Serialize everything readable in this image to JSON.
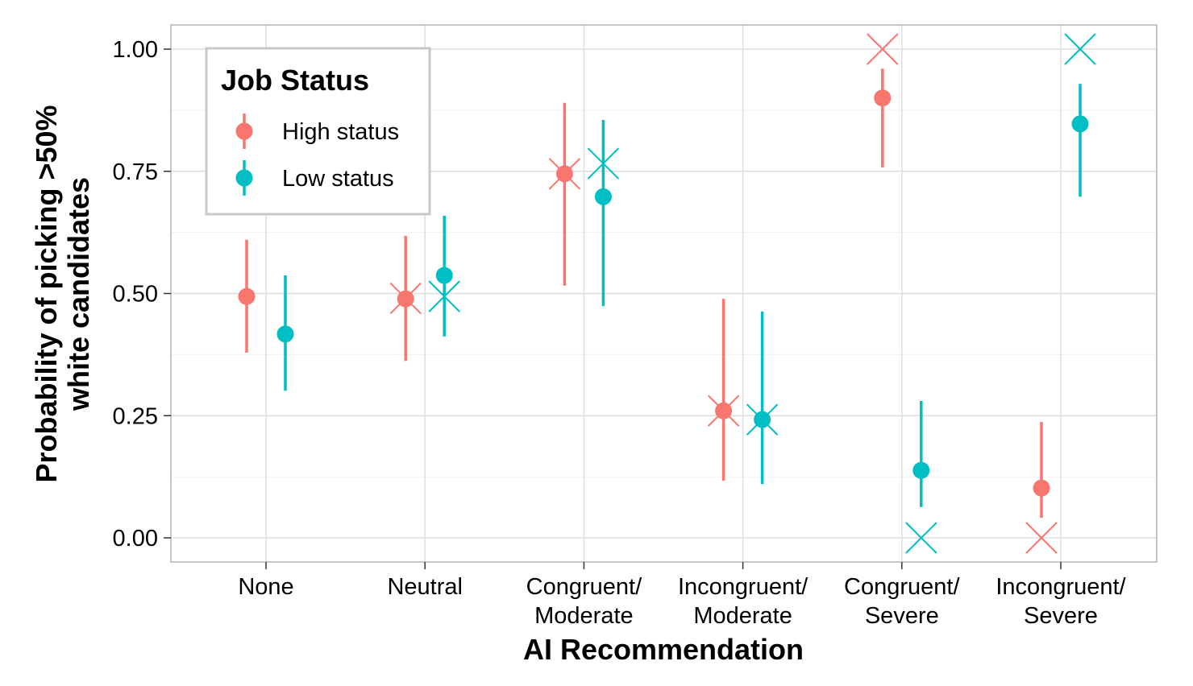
{
  "chart_data": {
    "type": "scatter",
    "title": "",
    "xlabel": "AI Recommendation",
    "ylabel": [
      "Probability of picking >50%",
      "white candidates"
    ],
    "ylim": [
      -0.05,
      1.05
    ],
    "yticks": [
      0,
      0.25,
      0.5,
      0.75,
      1.0
    ],
    "ytick_labels": [
      "0.00",
      "0.25",
      "0.50",
      "0.75",
      "1.00"
    ],
    "categories": [
      [
        "None"
      ],
      [
        "Neutral"
      ],
      [
        "Congruent/",
        "Moderate"
      ],
      [
        "Incongruent/",
        "Moderate"
      ],
      [
        "Congruent/",
        "Severe"
      ],
      [
        "Incongruent/",
        "Severe"
      ]
    ],
    "grid": true,
    "legend": {
      "title": "Job Status",
      "placement": "top-left"
    },
    "series": [
      {
        "name": "High status",
        "color": "#F8766D",
        "estimate": [
          0.494,
          0.489,
          0.745,
          0.26,
          0.9,
          0.102
        ],
        "ci_low": [
          0.379,
          0.362,
          0.516,
          0.117,
          0.758,
          0.041
        ],
        "ci_high": [
          0.61,
          0.618,
          0.89,
          0.489,
          0.96,
          0.237
        ],
        "observed_x": [
          null,
          0.49,
          0.745,
          0.26,
          1.0,
          0.0
        ]
      },
      {
        "name": "Low status",
        "color": "#00BFC4",
        "estimate": [
          0.417,
          0.537,
          0.698,
          0.242,
          0.138,
          0.847
        ],
        "ci_low": [
          0.301,
          0.412,
          0.474,
          0.11,
          0.063,
          0.698
        ],
        "ci_high": [
          0.537,
          0.659,
          0.855,
          0.463,
          0.28,
          0.929
        ],
        "observed_x": [
          null,
          0.494,
          0.766,
          0.242,
          0.0,
          1.0
        ]
      }
    ]
  }
}
